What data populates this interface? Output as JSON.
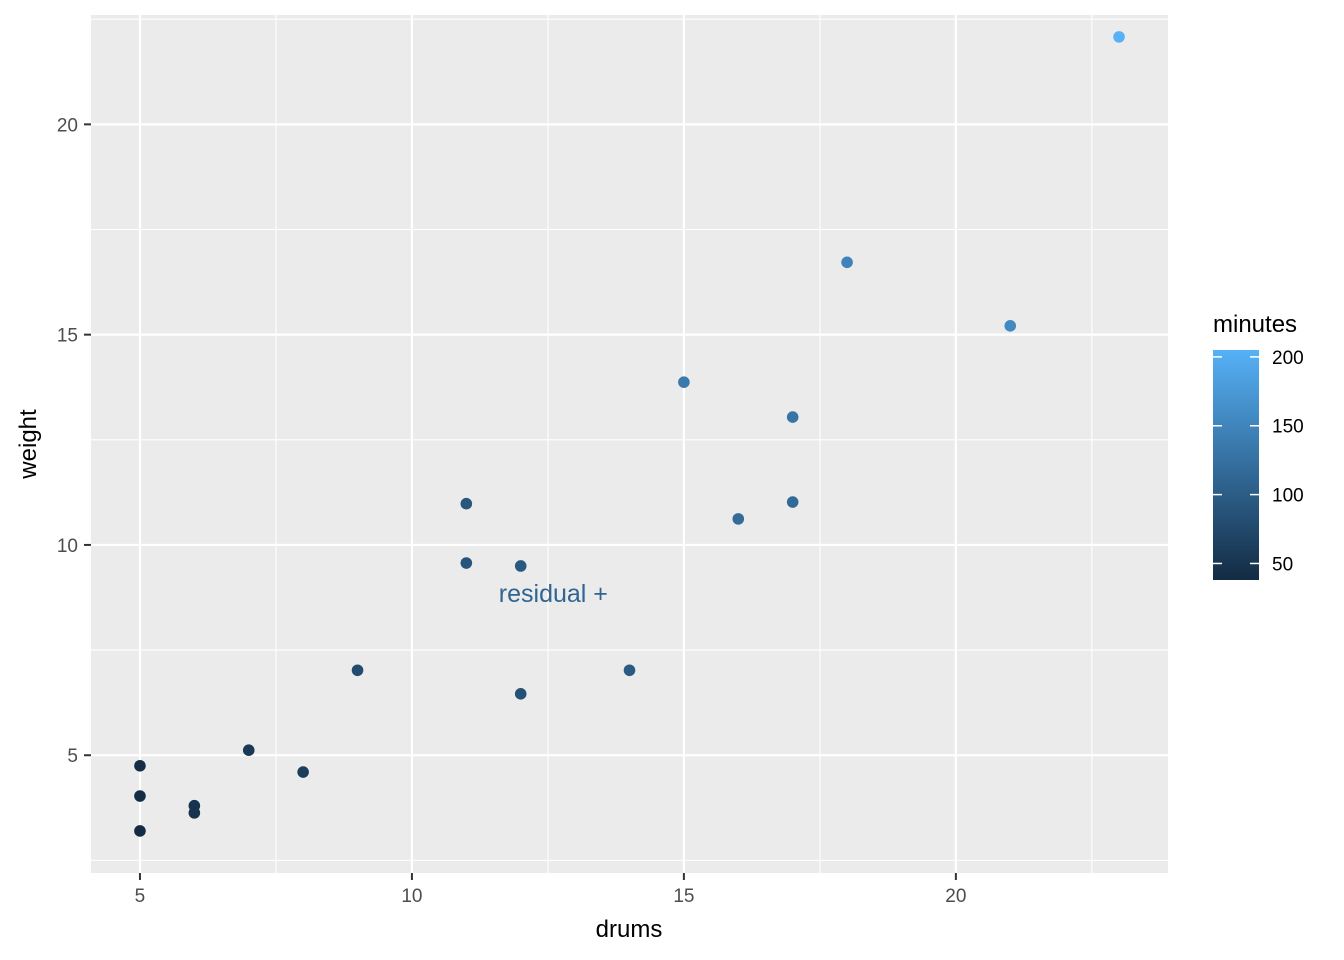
{
  "chart_data": {
    "type": "scatter",
    "title": "",
    "xlabel": "drums",
    "ylabel": "weight",
    "xlim": [
      4.1,
      23.9
    ],
    "ylim": [
      2.2,
      22.6
    ],
    "x_ticks": [
      5,
      10,
      15,
      20
    ],
    "y_ticks": [
      5,
      10,
      15,
      20
    ],
    "grid": true,
    "points": [
      {
        "x": 5,
        "y": 4.75,
        "minutes": 40
      },
      {
        "x": 5,
        "y": 4.03,
        "minutes": 40
      },
      {
        "x": 5,
        "y": 3.2,
        "minutes": 38
      },
      {
        "x": 6,
        "y": 3.8,
        "minutes": 48
      },
      {
        "x": 6,
        "y": 3.63,
        "minutes": 48
      },
      {
        "x": 7,
        "y": 5.12,
        "minutes": 55
      },
      {
        "x": 8,
        "y": 4.6,
        "minutes": 60
      },
      {
        "x": 9,
        "y": 7.02,
        "minutes": 78
      },
      {
        "x": 11,
        "y": 10.98,
        "minutes": 92
      },
      {
        "x": 11,
        "y": 9.57,
        "minutes": 90
      },
      {
        "x": 12,
        "y": 9.5,
        "minutes": 95
      },
      {
        "x": 12,
        "y": 6.46,
        "minutes": 85
      },
      {
        "x": 14,
        "y": 7.02,
        "minutes": 98
      },
      {
        "x": 15,
        "y": 13.87,
        "minutes": 135
      },
      {
        "x": 16,
        "y": 10.62,
        "minutes": 118
      },
      {
        "x": 17,
        "y": 13.04,
        "minutes": 130
      },
      {
        "x": 17,
        "y": 11.02,
        "minutes": 115
      },
      {
        "x": 18,
        "y": 16.72,
        "minutes": 148
      },
      {
        "x": 21,
        "y": 15.21,
        "minutes": 155
      },
      {
        "x": 23,
        "y": 22.08,
        "minutes": 205
      }
    ],
    "color_scale": {
      "name": "minutes",
      "range": [
        38,
        205
      ],
      "breaks": [
        50,
        100,
        150,
        200
      ],
      "low_color": "#132B43",
      "high_color": "#56B1F7"
    },
    "legend_position": "right",
    "annotation": {
      "text": "residual +",
      "x": 12.6,
      "y": 8.8,
      "minutes": 110
    }
  }
}
